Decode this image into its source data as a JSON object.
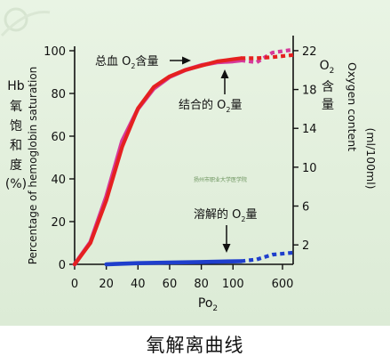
{
  "chart_data": {
    "type": "line",
    "title": "",
    "x_label_main": "Po",
    "x_label_sub": "2",
    "x_ticks": [
      "0",
      "20",
      "40",
      "60",
      "80",
      "100",
      "600"
    ],
    "y_left": {
      "label_cn": [
        "Hb",
        "氧",
        "饱",
        "和",
        "度",
        "(%)"
      ],
      "label_en": "Percentage of hemoglobin saturation",
      "ticks": [
        "0",
        "20",
        "40",
        "60",
        "80",
        "100"
      ],
      "range": [
        0,
        100
      ]
    },
    "y_right": {
      "label_cn_o": "O",
      "label_cn_sub": "2",
      "label_cn_chars": [
        "含",
        "量"
      ],
      "label_en": "Oxygen content",
      "label_unit": "(ml/100ml)",
      "ticks": [
        "2",
        "6",
        "10",
        "14",
        "18",
        "22"
      ],
      "range": [
        0,
        23
      ]
    },
    "series": [
      {
        "name": "总血 O2含量",
        "color": "#d63a9a",
        "axis": "right",
        "points": [
          [
            0,
            0
          ],
          [
            10,
            2.3
          ],
          [
            20,
            7.0
          ],
          [
            30,
            12.7
          ],
          [
            40,
            16.0
          ],
          [
            50,
            18.1
          ],
          [
            60,
            19.3
          ],
          [
            70,
            20.0
          ],
          [
            80,
            20.5
          ],
          [
            90,
            20.8
          ],
          [
            100,
            20.9
          ],
          [
            105,
            21.0
          ]
        ],
        "extension_points": [
          [
            105,
            21.0
          ],
          [
            115,
            20.8
          ],
          [
            125,
            21.8
          ],
          [
            138,
            22.1
          ]
        ]
      },
      {
        "name": "结合的 O2量",
        "color": "#e52020",
        "axis": "left",
        "points": [
          [
            0,
            0
          ],
          [
            10,
            10
          ],
          [
            20,
            30
          ],
          [
            30,
            55
          ],
          [
            40,
            73
          ],
          [
            50,
            83
          ],
          [
            60,
            88
          ],
          [
            70,
            91
          ],
          [
            80,
            93
          ],
          [
            90,
            95
          ],
          [
            100,
            96
          ],
          [
            105,
            96.5
          ]
        ],
        "extension_points": [
          [
            105,
            96.5
          ],
          [
            115,
            96.5
          ],
          [
            125,
            97
          ],
          [
            138,
            98
          ]
        ]
      },
      {
        "name": "溶解的 O2量",
        "color": "#1f3fcc",
        "axis": "right",
        "points": [
          [
            20,
            0
          ],
          [
            40,
            0.12
          ],
          [
            60,
            0.18
          ],
          [
            80,
            0.24
          ],
          [
            100,
            0.3
          ],
          [
            105,
            0.32
          ]
        ],
        "extension_points": [
          [
            105,
            0.32
          ],
          [
            115,
            0.5
          ],
          [
            125,
            1.0
          ],
          [
            138,
            1.2
          ]
        ]
      }
    ],
    "annotations": {
      "total": {
        "text": "总血 O",
        "sub": "2",
        "tail": "含量"
      },
      "bound": {
        "text": "结合的 O",
        "sub": "2",
        "tail": "量"
      },
      "dissolved": {
        "text": "溶解的 O",
        "sub": "2",
        "tail": "量"
      }
    },
    "watermark": "扬州市职业大学医学院"
  },
  "caption": "氧解离曲线",
  "colors": {
    "background": "#e4f0de",
    "total": "#d63a9a",
    "bound": "#e52020",
    "dissolved": "#1f3fcc"
  }
}
